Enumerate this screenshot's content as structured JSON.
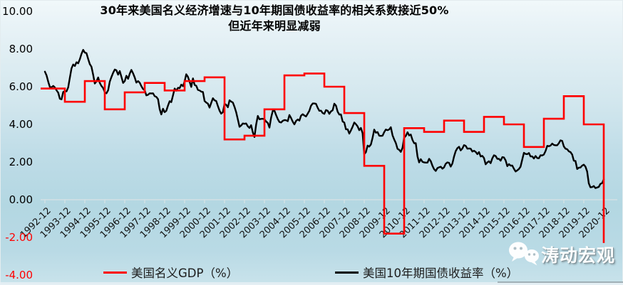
{
  "title": {
    "line1": "30年来美国名义经济增速与10年期国债收益率的相关系数接近50%",
    "line2": "但近年来明显减弱"
  },
  "watermark": {
    "text": "涛动宏观",
    "icon": "wechat-bubbles-icon"
  },
  "legend": {
    "items": [
      {
        "label": "美国名义GDP（%）",
        "color": "#ff0000"
      },
      {
        "label": "美国10年期国债收益率（%）",
        "color": "#000000"
      }
    ]
  },
  "axes": {
    "axis_color": "#d9e2e5",
    "y_ticks": [
      {
        "label": "10.00",
        "value": 10,
        "color": "#000000"
      },
      {
        "label": "8.00",
        "value": 8,
        "color": "#000000"
      },
      {
        "label": "6.00",
        "value": 6,
        "color": "#000000"
      },
      {
        "label": "4.00",
        "value": 4,
        "color": "#000000"
      },
      {
        "label": "2.00",
        "value": 2,
        "color": "#000000"
      },
      {
        "label": "0.00",
        "value": 0,
        "color": "#000000"
      },
      {
        "label": "-2.00",
        "value": -2,
        "color": "#ff0000"
      },
      {
        "label": "-4.00",
        "value": -4,
        "color": "#ff0000"
      }
    ],
    "x_labels": [
      "1992-12",
      "1993-12",
      "1994-12",
      "1995-12",
      "1996-12",
      "1997-12",
      "1998-12",
      "1999-12",
      "2000-12",
      "2001-12",
      "2002-12",
      "2003-12",
      "2004-12",
      "2005-12",
      "2006-12",
      "2007-12",
      "2008-12",
      "2009-12",
      "2010-12",
      "2011-12",
      "2012-12",
      "2013-12",
      "2014-12",
      "2015-12",
      "2016-12",
      "2017-12",
      "2018-12",
      "2019-12",
      "2020-12"
    ]
  },
  "chart_data": {
    "type": "line",
    "title": "30年来美国名义经济增速与10年期国债收益率的相关系数接近50% 但近年来明显减弱",
    "ylim": [
      -4,
      10
    ],
    "y_tick_step": 2,
    "grid": false,
    "legend_position": "bottom",
    "x_start": "1992-12",
    "x_end": "2020-12",
    "series": [
      {
        "name": "美国名义GDP（%）",
        "color": "#ff0000",
        "type": "step",
        "freq": "annual",
        "years": [
          1992,
          1993,
          1994,
          1995,
          1996,
          1997,
          1998,
          1999,
          2000,
          2001,
          2002,
          2003,
          2004,
          2005,
          2006,
          2007,
          2008,
          2009,
          2010,
          2011,
          2012,
          2013,
          2014,
          2015,
          2016,
          2017,
          2018,
          2019,
          2020
        ],
        "values": [
          5.9,
          5.2,
          6.3,
          4.8,
          5.7,
          6.2,
          5.8,
          6.3,
          6.5,
          3.2,
          3.4,
          4.8,
          6.6,
          6.7,
          6.0,
          4.6,
          1.8,
          -1.8,
          3.8,
          3.6,
          4.2,
          3.6,
          4.4,
          4.0,
          2.8,
          4.3,
          5.5,
          4.0,
          -2.3
        ]
      },
      {
        "name": "美国10年期国债收益率（%）",
        "color": "#000000",
        "type": "line",
        "freq": "monthly",
        "start": "1992-12",
        "values": [
          6.8,
          6.6,
          6.26,
          5.98,
          5.97,
          6.04,
          5.96,
          5.81,
          5.68,
          5.36,
          5.33,
          5.72,
          5.77,
          5.75,
          5.97,
          6.48,
          6.97,
          7.18,
          7.1,
          7.3,
          7.24,
          7.46,
          7.74,
          7.96,
          7.81,
          7.78,
          7.47,
          7.2,
          7.06,
          6.63,
          6.17,
          6.28,
          6.49,
          6.2,
          6.04,
          5.93,
          5.71,
          5.65,
          5.81,
          6.27,
          6.51,
          6.74,
          6.91,
          6.87,
          6.64,
          6.83,
          6.53,
          6.2,
          6.3,
          6.58,
          6.42,
          6.69,
          6.89,
          6.71,
          6.49,
          6.22,
          6.3,
          6.21,
          6.03,
          5.88,
          5.81,
          5.54,
          5.57,
          5.65,
          5.64,
          5.65,
          5.5,
          5.46,
          5.34,
          4.81,
          4.53,
          4.83,
          4.65,
          4.72,
          5.0,
          5.23,
          5.18,
          5.54,
          5.9,
          5.79,
          5.94,
          5.92,
          6.11,
          6.03,
          6.28,
          6.66,
          6.52,
          6.26,
          5.99,
          6.44,
          6.1,
          6.05,
          5.83,
          5.8,
          5.74,
          5.72,
          5.24,
          5.16,
          5.1,
          4.89,
          5.14,
          5.39,
          5.28,
          5.24,
          4.97,
          4.73,
          4.57,
          4.65,
          5.09,
          5.04,
          4.91,
          5.28,
          5.21,
          5.16,
          4.93,
          4.65,
          4.26,
          3.87,
          3.94,
          4.05,
          4.03,
          4.05,
          3.9,
          3.81,
          3.96,
          3.57,
          3.33,
          3.98,
          4.45,
          4.27,
          4.29,
          4.3,
          4.27,
          4.15,
          4.08,
          3.83,
          4.35,
          4.72,
          4.73,
          4.5,
          4.28,
          4.13,
          4.1,
          4.19,
          4.23,
          4.22,
          4.17,
          4.5,
          4.34,
          4.14,
          4.0,
          4.18,
          4.26,
          4.2,
          4.46,
          4.54,
          4.47,
          4.42,
          4.57,
          4.72,
          4.99,
          5.11,
          5.11,
          5.09,
          4.88,
          4.72,
          4.73,
          4.6,
          4.56,
          4.76,
          4.72,
          4.56,
          4.69,
          4.75,
          5.1,
          5.0,
          4.67,
          4.52,
          4.53,
          4.15,
          4.1,
          3.74,
          3.74,
          3.51,
          3.68,
          3.88,
          4.1,
          4.01,
          3.89,
          3.69,
          3.81,
          3.53,
          2.42,
          2.52,
          2.87,
          2.82,
          2.93,
          3.29,
          3.72,
          3.56,
          3.59,
          3.4,
          3.39,
          3.4,
          3.59,
          3.73,
          3.69,
          3.73,
          3.85,
          3.42,
          3.2,
          3.01,
          2.7,
          2.65,
          2.54,
          2.76,
          3.29,
          3.39,
          3.58,
          3.41,
          3.46,
          3.17,
          3.0,
          3.0,
          2.3,
          1.98,
          2.15,
          2.01,
          1.98,
          1.97,
          1.97,
          2.17,
          2.05,
          1.8,
          1.62,
          1.53,
          1.68,
          1.72,
          1.75,
          1.65,
          1.72,
          1.91,
          1.98,
          1.96,
          1.76,
          1.93,
          2.3,
          2.58,
          2.74,
          2.81,
          2.62,
          2.72,
          2.9,
          2.86,
          2.71,
          2.72,
          2.71,
          2.56,
          2.6,
          2.54,
          2.42,
          2.53,
          2.3,
          2.33,
          2.21,
          1.88,
          1.98,
          2.04,
          1.94,
          2.2,
          2.36,
          2.32,
          2.17,
          2.17,
          2.07,
          2.26,
          2.24,
          2.09,
          1.78,
          1.89,
          1.81,
          1.81,
          1.64,
          1.5,
          1.56,
          1.63,
          1.76,
          2.14,
          2.49,
          2.43,
          2.42,
          2.48,
          2.3,
          2.3,
          2.19,
          2.32,
          2.21,
          2.2,
          2.36,
          2.35,
          2.4,
          2.58,
          2.86,
          2.84,
          2.87,
          2.98,
          2.91,
          2.89,
          2.89,
          3.0,
          3.15,
          3.12,
          2.83,
          2.71,
          2.68,
          2.57,
          2.53,
          2.4,
          2.07,
          2.06,
          1.63,
          1.7,
          1.71,
          1.81,
          1.86,
          1.76,
          1.5,
          0.87,
          0.66,
          0.67,
          0.73,
          0.62,
          0.65,
          0.68,
          0.84,
          0.88,
          1.08
        ]
      }
    ]
  }
}
